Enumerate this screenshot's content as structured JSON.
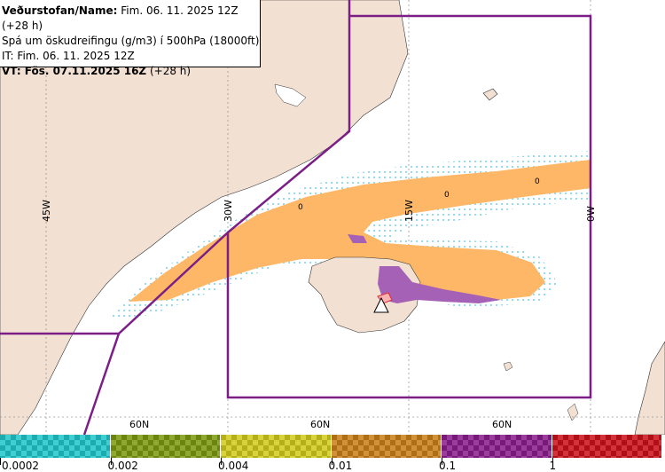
{
  "header": {
    "line1_label": "Veðurstofan/Name:",
    "line1_value": "Fim. 06. 11. 2025 12Z (+28 h)",
    "line2": "Spá um öskudreifingu (g/m3) í 500hPa (18000ft)",
    "line3": "IT: Fim. 06. 11. 2025 12Z",
    "line4_label": "VT: Fös. 07.11.2025 16Z",
    "line4_value": "(+28 h)"
  },
  "map": {
    "meridian_labels": [
      "45W",
      "30W",
      "15W",
      "0W"
    ],
    "parallel_labels": [
      "60N",
      "60N",
      "60N"
    ],
    "contour_labels": [
      "0",
      "0",
      "0"
    ],
    "colors": {
      "land": "#f2e0d3",
      "sea": "#ffffff",
      "boundary": "#7b1f86",
      "plume_orange": "#fdb766",
      "plume_purple": "#a561b5",
      "fringe": "#8ad8ec"
    }
  },
  "legend": {
    "bins": [
      {
        "color": "#3fcfd2",
        "label": "0.0002"
      },
      {
        "color": "#8fa831",
        "label": "0.002"
      },
      {
        "color": "#d8d23d",
        "label": "0.004"
      },
      {
        "color": "#d19138",
        "label": "0.01"
      },
      {
        "color": "#9b3d9d",
        "label": "0.1"
      },
      {
        "color": "#d3323a",
        "label": "1"
      }
    ]
  }
}
